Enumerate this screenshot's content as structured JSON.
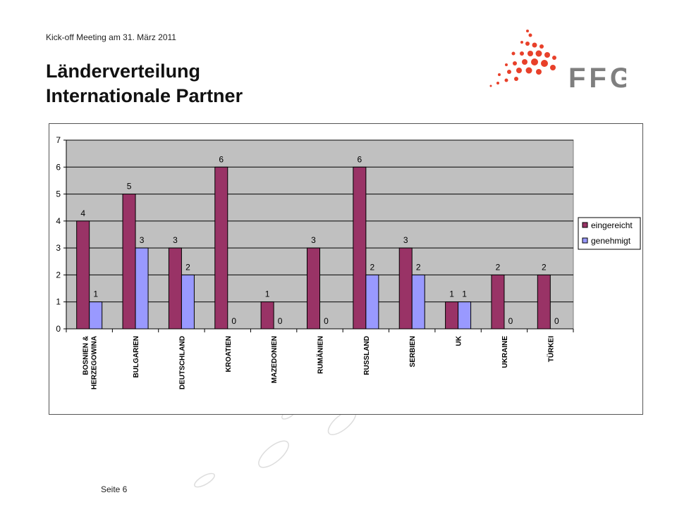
{
  "header": {
    "meeting": "Kick-off Meeting am 31. März 2011"
  },
  "title": {
    "line1": "Länderverteilung",
    "line2": "Internationale Partner"
  },
  "logo": {
    "text": "FFG",
    "accent_color": "#e8402a",
    "text_color": "#7f7f7f"
  },
  "footer": {
    "page": "Seite 6"
  },
  "colors": {
    "eingereicht": "#993366",
    "genehmigt": "#9999ff",
    "plot_background": "#c0c0c0",
    "deco": "#dddddd"
  },
  "chart_data": {
    "type": "bar",
    "categories": [
      [
        "BOSNIEN &",
        "HERZEGOWINA"
      ],
      [
        "BULGARIEN"
      ],
      [
        "DEUTSCHLAND"
      ],
      [
        "KROATIEN"
      ],
      [
        "MAZEDONIEN"
      ],
      [
        "RUMÄNIEN"
      ],
      [
        "RUSSLAND"
      ],
      [
        "SERBIEN"
      ],
      [
        "UK"
      ],
      [
        "UKRAINE"
      ],
      [
        "TÜRKEI"
      ]
    ],
    "series": [
      {
        "name": "eingereicht",
        "values": [
          4,
          5,
          3,
          6,
          1,
          3,
          6,
          3,
          1,
          2,
          2
        ]
      },
      {
        "name": "genehmigt",
        "values": [
          1,
          3,
          2,
          0,
          0,
          0,
          2,
          2,
          1,
          0,
          0
        ]
      }
    ],
    "ylim": [
      0,
      7
    ],
    "yticks": [
      0,
      1,
      2,
      3,
      4,
      5,
      6,
      7
    ],
    "grid": true,
    "legend_position": "right"
  }
}
